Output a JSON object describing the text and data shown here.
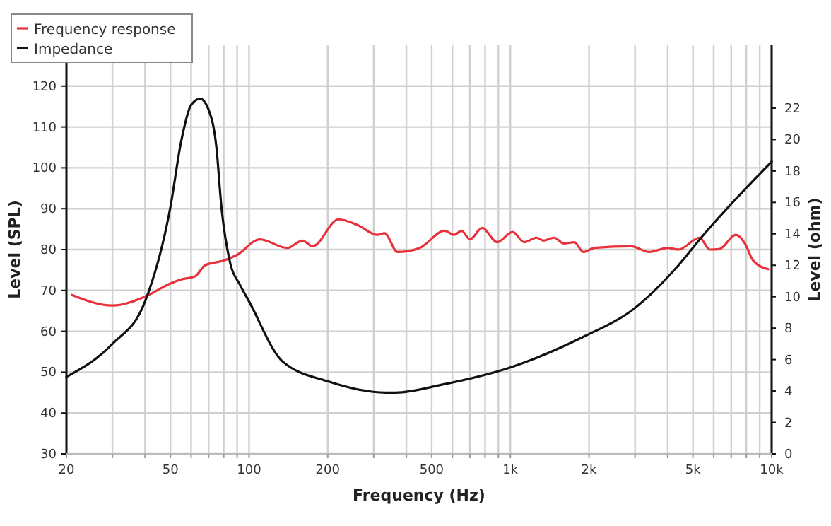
{
  "chart_data": {
    "type": "line",
    "xlabel": "Frequency (Hz)",
    "ylabel": "Level (SPL)",
    "y2label": "Level (ohm)",
    "log": "x",
    "grid": true,
    "legend": "top left",
    "line_style": "solid",
    "marker": "none",
    "xlim": [
      20,
      10000
    ],
    "ylim": [
      30,
      130
    ],
    "y2lim": [
      0,
      26
    ],
    "xticks": [
      20,
      {
        "value": 30,
        "label": null
      },
      {
        "value": 40,
        "label": null
      },
      50,
      {
        "value": 60,
        "label": null
      },
      {
        "value": 70,
        "label": null
      },
      {
        "value": 80,
        "label": null
      },
      {
        "value": 90,
        "label": null
      },
      100,
      200,
      {
        "value": 300,
        "label": null
      },
      {
        "value": 400,
        "label": null
      },
      500,
      {
        "value": 600,
        "label": null
      },
      {
        "value": 700,
        "label": null
      },
      {
        "value": 800,
        "label": null
      },
      {
        "value": 900,
        "label": null
      },
      {
        "value": 1000,
        "label": "1k"
      },
      {
        "value": 2000,
        "label": "2k"
      },
      {
        "value": 3000,
        "label": null
      },
      {
        "value": 4000,
        "label": null
      },
      {
        "value": 5000,
        "label": "5k"
      },
      {
        "value": 6000,
        "label": null
      },
      {
        "value": 7000,
        "label": null
      },
      {
        "value": 8000,
        "label": null
      },
      {
        "value": 9000,
        "label": null
      },
      {
        "value": 10000,
        "label": "10k"
      }
    ],
    "yticks": [
      30,
      40,
      50,
      60,
      70,
      80,
      90,
      100,
      110,
      120
    ],
    "y2ticks": [
      0,
      2,
      4,
      6,
      8,
      10,
      12,
      14,
      16,
      18,
      20,
      22
    ],
    "series": [
      {
        "name": "Frequency response",
        "color": "#e8313a",
        "x": [
          21,
          30,
          40,
          50,
          55,
          62,
          68,
          80,
          90,
          110,
          140,
          160,
          175,
          220,
          260,
          310,
          330,
          370,
          450,
          560,
          610,
          650,
          700,
          780,
          890,
          1020,
          1130,
          1260,
          1340,
          1470,
          1600,
          1760,
          1900,
          2100,
          2900,
          3400,
          4000,
          4400,
          5300,
          5800,
          6300,
          7300,
          7900,
          8500,
          9700
        ],
        "values": [
          68.9,
          66.3,
          68.5,
          71.7,
          72.7,
          73.4,
          76.2,
          77.3,
          78.7,
          82.5,
          80.4,
          82.2,
          80.8,
          87.4,
          86,
          83.6,
          84,
          79.4,
          80.4,
          84.6,
          83.6,
          84.6,
          82.5,
          85.3,
          81.8,
          84.3,
          81.8,
          82.9,
          82.2,
          82.9,
          81.5,
          81.8,
          79.4,
          80.4,
          80.8,
          79.4,
          80.4,
          80,
          82.9,
          80,
          80.1,
          83.6,
          81.5,
          77.3,
          75.2
        ]
      },
      {
        "name": "Impedance",
        "color": "#111111",
        "axis": "y2",
        "x": [
          20,
          30,
          40,
          50,
          55,
          60,
          65,
          70,
          75,
          78.4,
          84.8,
          92,
          100,
          134,
          202,
          334,
          364,
          546,
          1000,
          1930,
          2900,
          4400,
          5400,
          10000
        ],
        "values": [
          4.9,
          7,
          9.7,
          15.7,
          19.9,
          22.2,
          22.6,
          21.9,
          19.5,
          15.7,
          12.1,
          10.8,
          9.7,
          5.9,
          4.6,
          3.9,
          3.9,
          4.4,
          5.5,
          7.5,
          9.1,
          12,
          13.8,
          18.6
        ]
      }
    ]
  }
}
